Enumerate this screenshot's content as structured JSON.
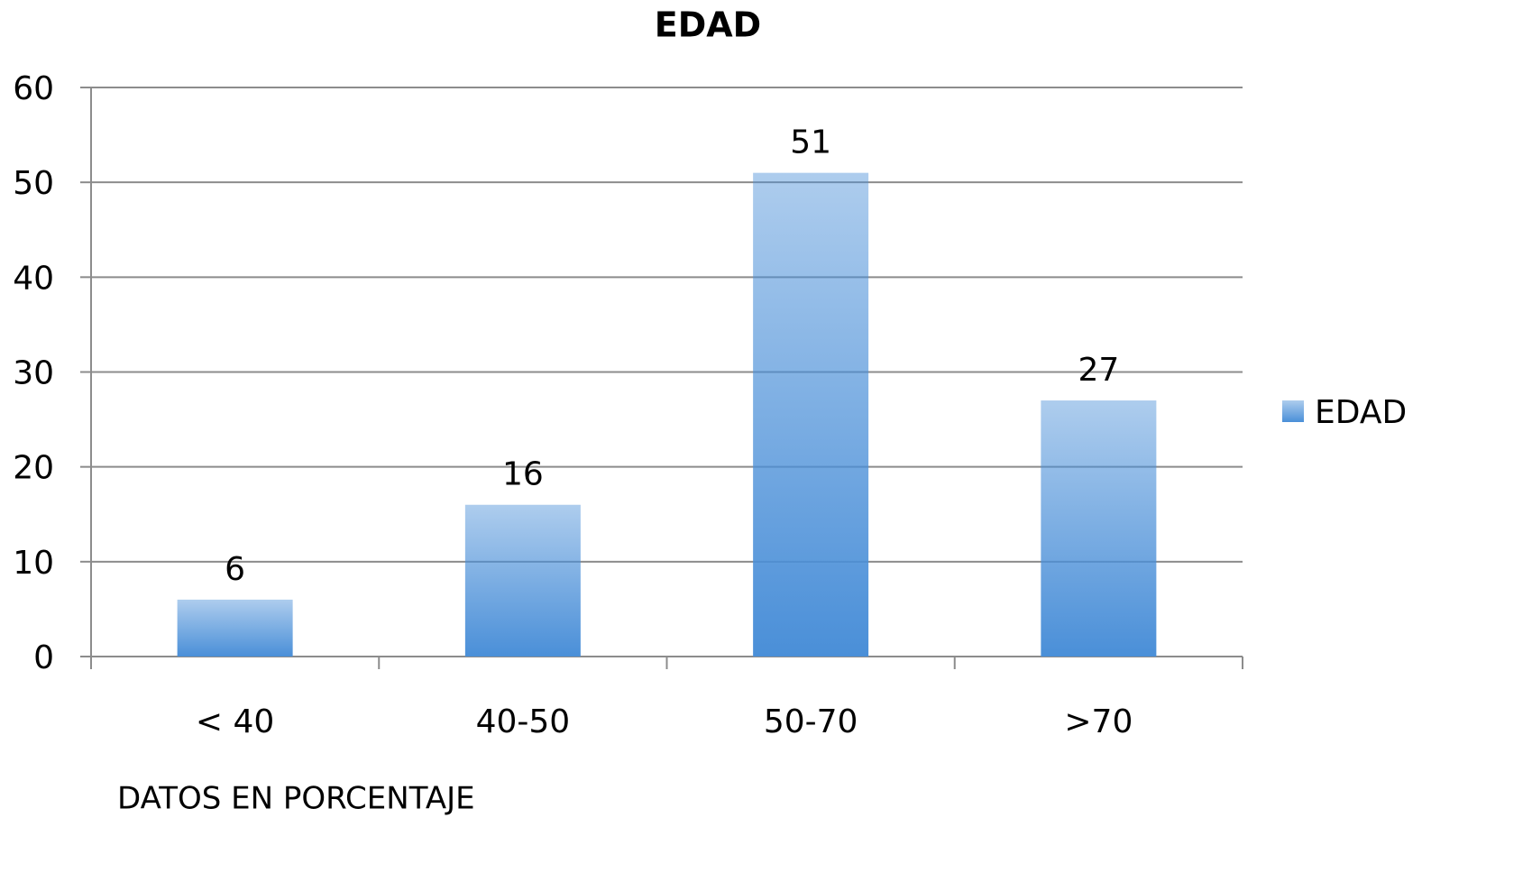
{
  "chart_data": {
    "type": "bar",
    "title": "EDAD",
    "categories": [
      "< 40",
      "40-50",
      "50-70",
      ">70"
    ],
    "series": [
      {
        "name": "EDAD",
        "color": "#4a8fd8",
        "values": [
          6,
          16,
          51,
          27
        ]
      }
    ],
    "ylim": [
      0,
      60
    ],
    "yticks": [
      0,
      10,
      20,
      30,
      40,
      50,
      60
    ],
    "grid": true,
    "legend": "right",
    "annotation": "DATOS EN PORCENTAJE"
  }
}
